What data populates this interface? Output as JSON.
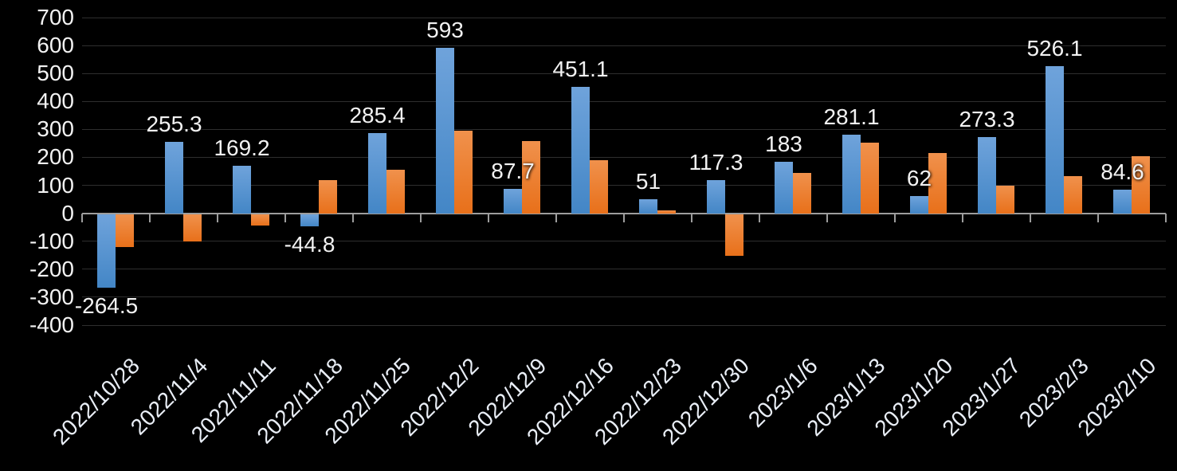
{
  "chart_data": {
    "type": "bar",
    "title": "",
    "xlabel": "",
    "ylabel": "",
    "categories": [
      "2022/10/28",
      "2022/11/4",
      "2022/11/11",
      "2022/11/18",
      "2022/11/25",
      "2022/12/2",
      "2022/12/9",
      "2022/12/16",
      "2022/12/23",
      "2022/12/30",
      "2023/1/6",
      "2023/1/13",
      "2023/1/20",
      "2023/1/27",
      "2023/2/3",
      "2023/2/10"
    ],
    "series": [
      {
        "name": "series-1-blue",
        "values": [
          -264.5,
          255.3,
          169.2,
          -44.8,
          285.4,
          593,
          87.7,
          451.1,
          51,
          117.3,
          183,
          281.1,
          62,
          273.3,
          526.1,
          84.6
        ],
        "data_labels": [
          "-264.5",
          "255.3",
          "169.2",
          "-44.8",
          "285.4",
          "593",
          "87.7",
          "451.1",
          "51",
          "117.3",
          "183",
          "281.1",
          "62",
          "273.3",
          "526.1",
          "84.6"
        ],
        "color_top": "#6fa3db",
        "color_bottom": "#4386c6"
      },
      {
        "name": "series-2-orange",
        "values": [
          -118,
          -99,
          -41,
          119,
          157,
          295,
          257,
          190,
          10,
          -148,
          143,
          253,
          215,
          98,
          133,
          203
        ],
        "data_labels": [],
        "color_top": "#f0914c",
        "color_bottom": "#e8701a"
      }
    ],
    "ylim": [
      -400,
      700
    ],
    "ytick_step": 100,
    "y_tick_labels": [
      "700",
      "600",
      "500",
      "400",
      "300",
      "200",
      "100",
      "0",
      "-100",
      "-200",
      "-300",
      "-400"
    ],
    "grid": true,
    "legend_position": "none",
    "style": {
      "background": "#000000",
      "gridline_color": "#2e2e2e",
      "axis_color": "#9d9d9d",
      "text_color": "#f2f2f2",
      "x_label_color": "#e9eef6"
    }
  }
}
